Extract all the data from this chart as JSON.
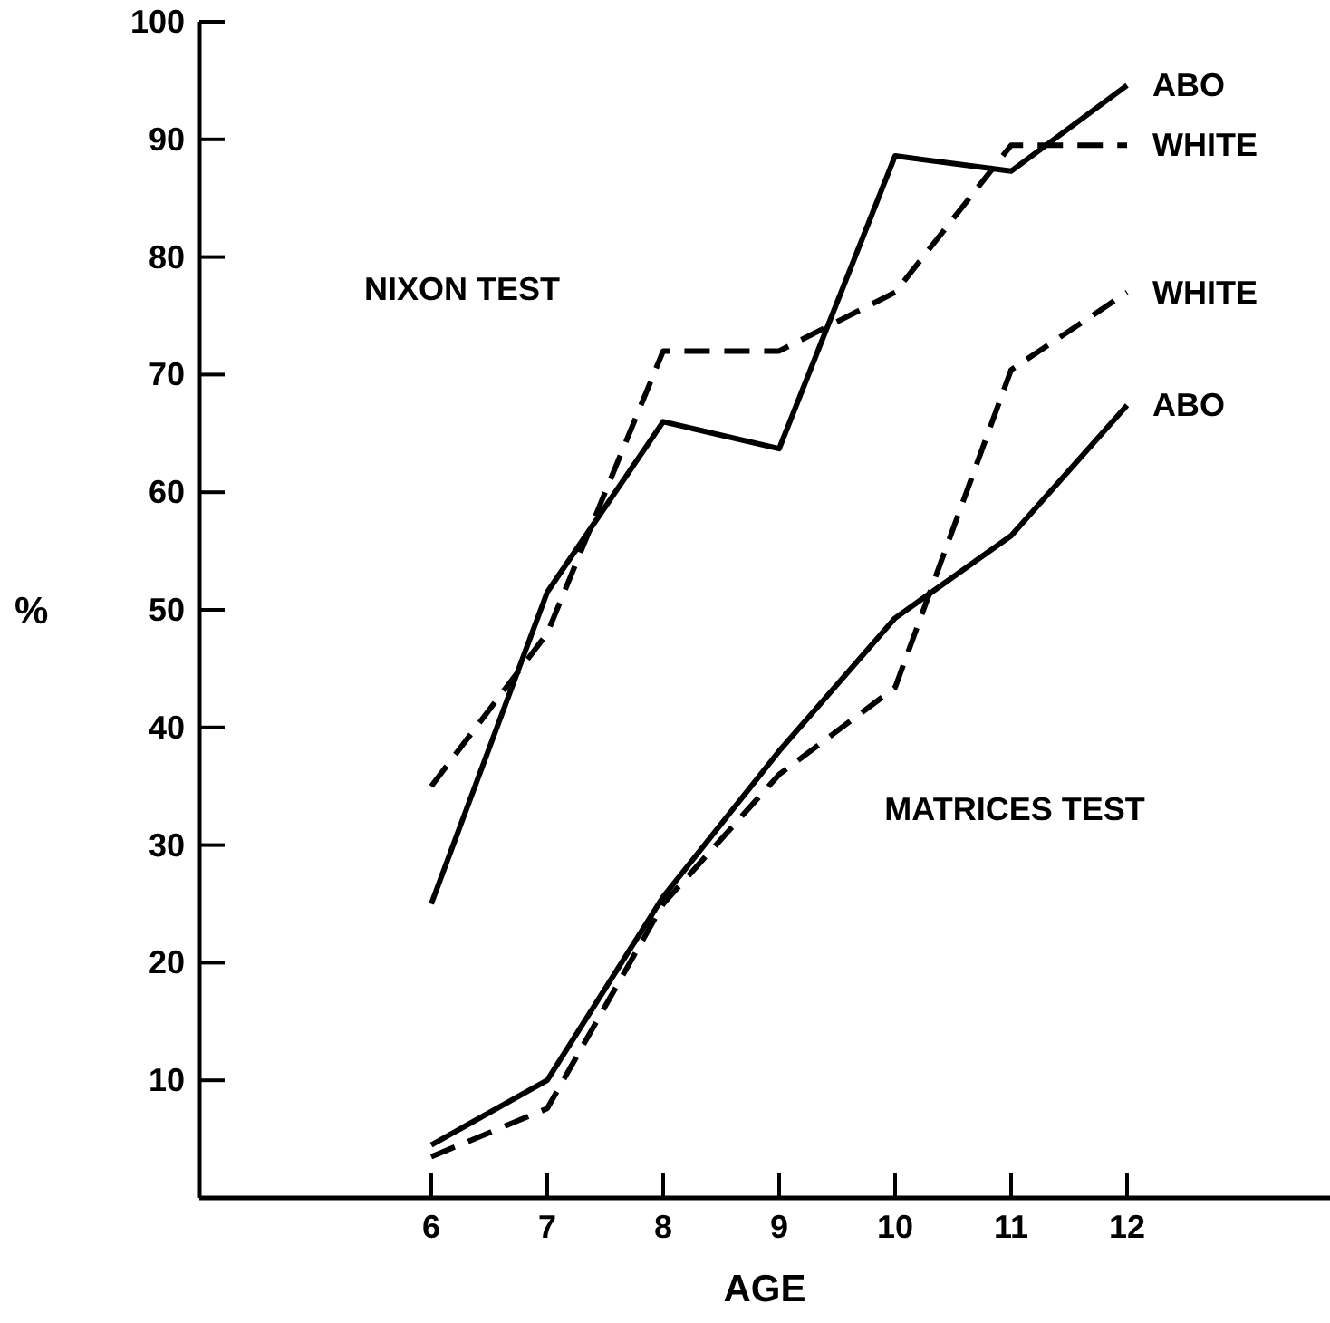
{
  "chart_data": {
    "type": "line",
    "xlabel": "AGE",
    "ylabel": "%",
    "x": [
      6,
      7,
      8,
      9,
      10,
      11,
      12
    ],
    "series": [
      {
        "name": "ABO",
        "color": "#000000",
        "line_style": "solid",
        "values": [
          25,
          51.5,
          66,
          63.7,
          88.6,
          87.3,
          94.6
        ]
      },
      {
        "name": "WHITE",
        "color": "#000000",
        "line_style": "dashed",
        "values": [
          35,
          48,
          72,
          72,
          77,
          89.5,
          89.5
        ]
      },
      {
        "name": "WHITE",
        "color": "#000000",
        "line_style": "dashed",
        "values": [
          3.5,
          7.6,
          25,
          36,
          43.4,
          70.4,
          77
        ]
      },
      {
        "name": "ABO",
        "color": "#000000",
        "line_style": "solid",
        "values": [
          4.5,
          10,
          25.6,
          38,
          49.3,
          56.3,
          67.4
        ]
      }
    ],
    "annotations": [
      "NIXON TEST",
      "MATRICES TEST"
    ],
    "xlim": [
      4,
      13.75
    ],
    "xticks": [
      6,
      7,
      8,
      9,
      10,
      11,
      12
    ],
    "ylim": [
      0,
      100
    ],
    "yticks": [
      10,
      20,
      30,
      40,
      50,
      60,
      70,
      80,
      90,
      100
    ],
    "grid": false,
    "legend": false,
    "marker": "none"
  }
}
